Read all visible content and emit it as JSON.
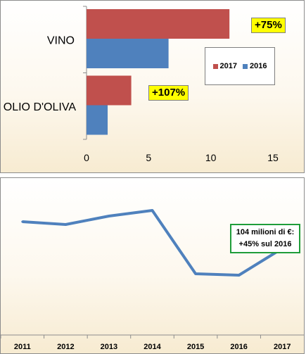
{
  "chart_data": [
    {
      "type": "bar",
      "orientation": "horizontal",
      "categories": [
        "VINO",
        "OLIO D'OLIVA"
      ],
      "series": [
        {
          "name": "2017",
          "color": "#c0504d",
          "values": [
            11.5,
            3.6
          ]
        },
        {
          "name": "2016",
          "color": "#4f81bd",
          "values": [
            6.6,
            1.7
          ]
        }
      ],
      "xlim": [
        0,
        15
      ],
      "xticks": [
        "0",
        "5",
        "10",
        "15"
      ],
      "legend": [
        "2017",
        "2016"
      ],
      "legend_position": "right",
      "annotations": [
        {
          "category": "VINO",
          "text": "+75%"
        },
        {
          "category": "OLIO D'OLIVA",
          "text": "+107%"
        }
      ]
    },
    {
      "type": "line",
      "x": [
        "2011",
        "2012",
        "2013",
        "2014",
        "2015",
        "2016",
        "2017"
      ],
      "series": [
        {
          "color": "#4f81bd",
          "values": [
            79,
            77,
            83,
            87,
            42,
            41,
            60
          ]
        }
      ],
      "annotation": {
        "x": "2017",
        "lines": [
          "104 milioni di €:",
          "+45% sul 2016"
        ]
      }
    }
  ]
}
